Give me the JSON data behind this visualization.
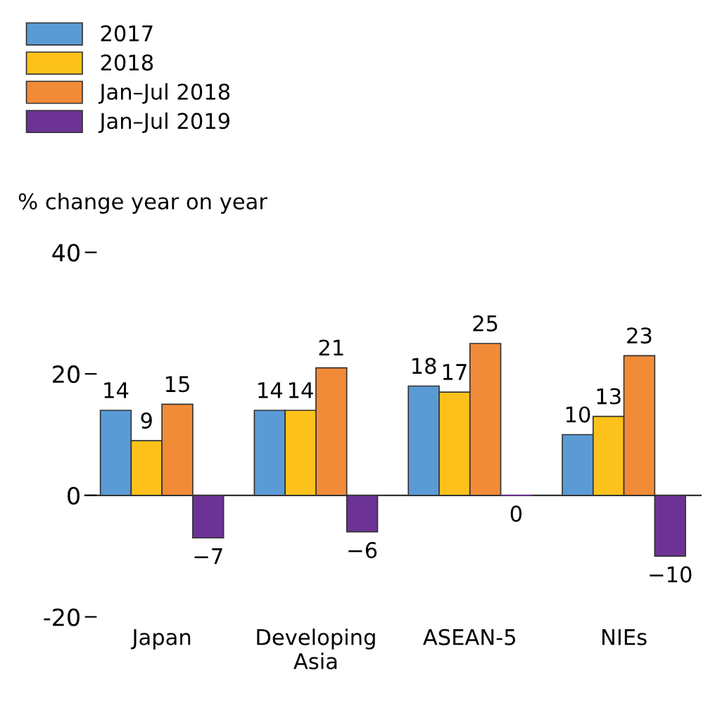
{
  "chart_data": {
    "type": "bar",
    "ylabel": "% change year on year",
    "categories": [
      "Japan",
      "Developing\nAsia",
      "ASEAN-5",
      "NIEs"
    ],
    "series": [
      {
        "name": "2017",
        "color": "#5b9bd5",
        "values": [
          14,
          14,
          18,
          10
        ]
      },
      {
        "name": "2018",
        "color": "#fcc21b",
        "values": [
          9,
          14,
          17,
          13
        ]
      },
      {
        "name": "Jan–Jul 2018",
        "color": "#f28b38",
        "values": [
          15,
          21,
          25,
          23
        ]
      },
      {
        "name": "Jan–Jul 2019",
        "color": "#6d3296",
        "values": [
          -7,
          -6,
          0,
          -10
        ]
      }
    ],
    "ylim": [
      -20,
      40
    ],
    "yticks": [
      -20,
      0,
      20,
      40
    ],
    "data_labels": true,
    "legend": "top left"
  }
}
